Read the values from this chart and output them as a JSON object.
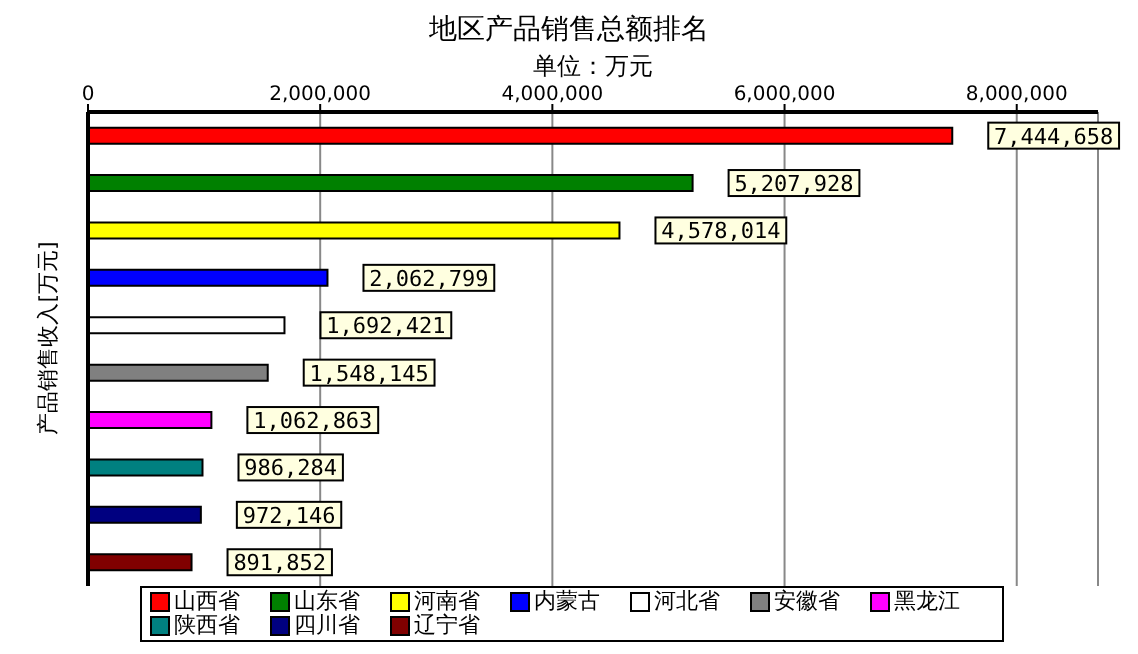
{
  "chart_data": {
    "type": "bar",
    "orientation": "horizontal",
    "stacked": true,
    "title": "地区产品销售总额排名",
    "xlabel": "单位：万元",
    "ylabel": "产品销售收入[万元]",
    "categories": [
      null,
      null,
      null,
      null,
      null,
      null,
      null,
      null,
      null,
      null
    ],
    "series": [
      {
        "name": "山西省",
        "color": "#ff0000",
        "values": [
          7444658,
          null,
          null,
          null,
          null,
          null,
          null,
          null,
          null,
          null
        ],
        "value_labels": [
          "7,444,658",
          null,
          null,
          null,
          null,
          null,
          null,
          null,
          null,
          null
        ]
      },
      {
        "name": "山东省",
        "color": "#008000",
        "values": [
          null,
          5207928,
          null,
          null,
          null,
          null,
          null,
          null,
          null,
          null
        ],
        "value_labels": [
          null,
          "5,207,928",
          null,
          null,
          null,
          null,
          null,
          null,
          null,
          null
        ]
      },
      {
        "name": "河南省",
        "color": "#ffff00",
        "values": [
          null,
          null,
          4578014,
          null,
          null,
          null,
          null,
          null,
          null,
          null
        ],
        "value_labels": [
          null,
          null,
          "4,578,014",
          null,
          null,
          null,
          null,
          null,
          null,
          null
        ]
      },
      {
        "name": "内蒙古",
        "color": "#0000ff",
        "values": [
          null,
          null,
          null,
          2062799,
          null,
          null,
          null,
          null,
          null,
          null
        ],
        "value_labels": [
          null,
          null,
          null,
          "2,062,799",
          null,
          null,
          null,
          null,
          null,
          null
        ]
      },
      {
        "name": "河北省",
        "color": "#ffffff",
        "values": [
          null,
          null,
          null,
          null,
          1692421,
          null,
          null,
          null,
          null,
          null
        ],
        "value_labels": [
          null,
          null,
          null,
          null,
          "1,692,421",
          null,
          null,
          null,
          null,
          null
        ]
      },
      {
        "name": "安徽省",
        "color": "#808080",
        "values": [
          null,
          null,
          null,
          null,
          null,
          1548145,
          null,
          null,
          null,
          null
        ],
        "value_labels": [
          null,
          null,
          null,
          null,
          null,
          "1,548,145",
          null,
          null,
          null,
          null
        ]
      },
      {
        "name": "黑龙江",
        "color": "#ff00ff",
        "values": [
          null,
          null,
          null,
          null,
          null,
          null,
          1062863,
          null,
          null,
          null
        ],
        "value_labels": [
          null,
          null,
          null,
          null,
          null,
          null,
          "1,062,863",
          null,
          null,
          null
        ]
      },
      {
        "name": "陕西省",
        "color": "#008080",
        "values": [
          null,
          null,
          null,
          null,
          null,
          null,
          null,
          986284,
          null,
          null
        ],
        "value_labels": [
          null,
          null,
          null,
          null,
          null,
          null,
          null,
          "986,284",
          null,
          null
        ]
      },
      {
        "name": "四川省",
        "color": "#000080",
        "values": [
          null,
          null,
          null,
          null,
          null,
          null,
          null,
          null,
          972146,
          null
        ],
        "value_labels": [
          null,
          null,
          null,
          null,
          null,
          null,
          null,
          null,
          "972,146",
          null
        ]
      },
      {
        "name": "辽宁省",
        "color": "#800000",
        "values": [
          null,
          null,
          null,
          null,
          null,
          null,
          null,
          null,
          null,
          891852
        ],
        "value_labels": [
          null,
          null,
          null,
          null,
          null,
          null,
          null,
          null,
          null,
          "891,852"
        ]
      }
    ],
    "xlim": [
      0,
      8700000
    ],
    "xticks": [
      {
        "value": 0,
        "label": "0"
      },
      {
        "value": 2000000,
        "label": "2,000,000"
      },
      {
        "value": 4000000,
        "label": "4,000,000"
      },
      {
        "value": 6000000,
        "label": "6,000,000"
      },
      {
        "value": 8000000,
        "label": "8,000,000"
      }
    ],
    "grid": "x",
    "legend": "bottom"
  }
}
